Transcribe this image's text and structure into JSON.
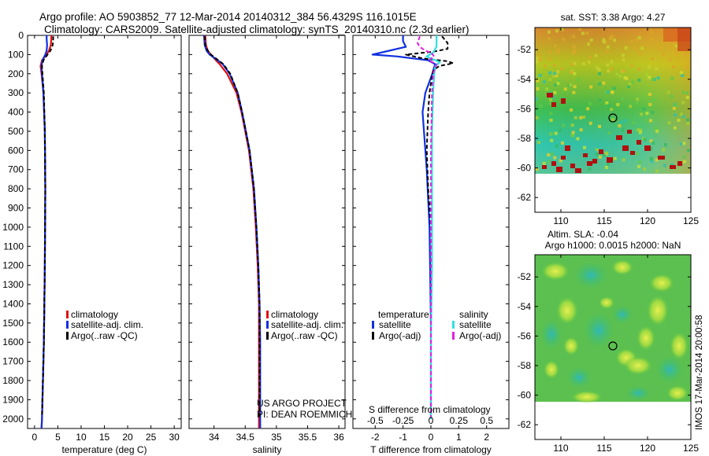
{
  "title": {
    "line1": "Argo profile: AO 5903852_77 12-Mar-2014 20140312_384 56.4329S 116.1015E",
    "line2": "Climatology: CARS2009. Satellite-adjusted climatology: synTS_20140310.nc (2.3d earlier)"
  },
  "colors": {
    "climatology": "#e01010",
    "satellite": "#1030e0",
    "argo": "#000000",
    "s_satellite": "#30e0e0",
    "s_argo": "#e020e0"
  },
  "depth_axis": {
    "ylim": [
      0,
      2050
    ],
    "ticks": [
      0,
      100,
      200,
      300,
      400,
      500,
      600,
      700,
      800,
      900,
      1000,
      1100,
      1200,
      1300,
      1400,
      1500,
      1600,
      1700,
      1800,
      1900,
      2000
    ]
  },
  "chart_data": [
    {
      "id": "temperature",
      "type": "line",
      "xlabel": "temperature (deg C)",
      "xlim": [
        -1.5,
        31.5
      ],
      "xticks": [
        0,
        5,
        10,
        15,
        20,
        25,
        30
      ],
      "legend": {
        "placement": "center-left",
        "entries": [
          "climatology",
          "satellite-adj. clim.",
          "Argo(..raw -QC)"
        ]
      },
      "series": [
        {
          "name": "climatology",
          "color_key": "climatology",
          "style": "solid",
          "depth": [
            0,
            20,
            50,
            80,
            100,
            130,
            160,
            200,
            300,
            500,
            800,
            1200,
            1600,
            2000,
            2050
          ],
          "values": [
            3.6,
            3.6,
            3.5,
            3.1,
            2.6,
            1.6,
            1.3,
            1.5,
            1.9,
            2.2,
            2.3,
            2.2,
            2.0,
            1.6,
            1.5
          ]
        },
        {
          "name": "satellite-adj. clim.",
          "color_key": "satellite",
          "style": "solid",
          "depth": [
            0,
            20,
            50,
            80,
            100,
            130,
            160,
            200,
            300,
            500,
            800,
            1200,
            1600,
            2000,
            2050
          ],
          "values": [
            2.6,
            2.6,
            2.7,
            2.6,
            2.3,
            1.7,
            1.5,
            1.6,
            1.9,
            2.2,
            2.3,
            2.2,
            2.0,
            1.6,
            1.5
          ]
        },
        {
          "name": "Argo(..raw -QC)",
          "color_key": "argo",
          "style": "dashed",
          "depth": [
            5,
            20,
            50,
            80,
            100,
            130,
            160,
            200,
            300,
            500,
            800,
            1200,
            1600,
            1990
          ],
          "values": [
            4.0,
            4.0,
            3.9,
            3.4,
            2.8,
            1.9,
            1.6,
            1.7,
            2.0,
            2.2,
            2.3,
            2.2,
            2.0,
            1.6
          ]
        }
      ]
    },
    {
      "id": "salinity",
      "type": "line",
      "xlabel": "salinity",
      "xlim": [
        33.6,
        36.1
      ],
      "xticks": [
        34,
        34.5,
        35,
        35.5,
        36
      ],
      "xticklabels": [
        "34",
        "34.5",
        "35",
        "35.5",
        "36"
      ],
      "legend": {
        "placement": "center-right",
        "entries": [
          "climatology",
          "satellite-adj. clim.",
          "Argo(..raw -QC)"
        ]
      },
      "series": [
        {
          "name": "climatology",
          "color_key": "climatology",
          "style": "solid",
          "depth": [
            0,
            50,
            80,
            100,
            130,
            150,
            200,
            300,
            400,
            500,
            600,
            800,
            1000,
            1200,
            1400,
            1600,
            1800,
            2000,
            2050
          ],
          "values": [
            33.86,
            33.87,
            33.9,
            33.95,
            34.03,
            34.09,
            34.21,
            34.36,
            34.44,
            34.5,
            34.56,
            34.63,
            34.67,
            34.7,
            34.72,
            34.72,
            34.72,
            34.72,
            34.72
          ]
        },
        {
          "name": "satellite-adj. clim.",
          "color_key": "satellite",
          "style": "solid",
          "depth": [
            0,
            50,
            80,
            100,
            130,
            150,
            200,
            300,
            400,
            500,
            600,
            800,
            1000,
            1200,
            1400,
            1600,
            1800,
            2000,
            2050
          ],
          "values": [
            33.84,
            33.85,
            33.88,
            33.93,
            34.06,
            34.14,
            34.25,
            34.38,
            34.45,
            34.51,
            34.57,
            34.64,
            34.68,
            34.71,
            34.73,
            34.74,
            34.74,
            34.74,
            34.74
          ]
        },
        {
          "name": "Argo(..raw -QC)",
          "color_key": "argo",
          "style": "dashed",
          "depth": [
            5,
            50,
            80,
            100,
            130,
            150,
            200,
            300,
            400,
            500,
            600,
            800,
            1000,
            1200,
            1400,
            1600,
            1800,
            1990
          ],
          "values": [
            33.85,
            33.86,
            33.9,
            33.95,
            34.07,
            34.15,
            34.26,
            34.38,
            34.45,
            34.51,
            34.57,
            34.64,
            34.68,
            34.71,
            34.73,
            34.73,
            34.73,
            34.73
          ]
        }
      ]
    },
    {
      "id": "difference",
      "type": "line",
      "xlabel": "T difference from climatology",
      "xlabel_top": "S difference from climatology",
      "xlim": [
        -2.8,
        2.8
      ],
      "xticks": [
        -2,
        -1,
        0,
        1,
        2
      ],
      "top_ticks": [
        -0.5,
        -0.25,
        0,
        0.25,
        0.5
      ],
      "top_ticklabels": [
        "-0.5",
        "-0.25",
        "0",
        "0.25",
        "0.5"
      ],
      "s_scale": 4,
      "legend": {
        "temperature_heading": "temperature",
        "salinity_heading": "salinity",
        "entries": [
          "satellite",
          "Argo(-adj)",
          "satellite",
          "Argo(-adj)"
        ]
      },
      "series": [
        {
          "name": "T satellite",
          "color_key": "satellite",
          "style": "solid",
          "depth": [
            0,
            30,
            60,
            80,
            100,
            110,
            130,
            150,
            200,
            300,
            400,
            700,
            1000,
            1500,
            2000
          ],
          "values": [
            -1.0,
            -1.0,
            -0.9,
            -1.5,
            -2.1,
            -1.2,
            -0.1,
            0.15,
            0.05,
            -0.2,
            -0.3,
            -0.15,
            -0.05,
            0,
            0
          ]
        },
        {
          "name": "T Argo(-adj)",
          "color_key": "argo",
          "style": "dashed",
          "depth": [
            5,
            40,
            70,
            85,
            100,
            120,
            135,
            145,
            160,
            180,
            200,
            300,
            400,
            600,
            800,
            1000,
            1500,
            1990
          ],
          "values": [
            0.4,
            0.6,
            0.6,
            0.1,
            -0.9,
            -0.3,
            0.6,
            0.8,
            0.3,
            0.1,
            0.05,
            -0.05,
            -0.1,
            -0.15,
            -0.1,
            0,
            0,
            0
          ]
        },
        {
          "name": "S satellite",
          "color_key": "s_satellite",
          "style": "solid",
          "depth": [
            0,
            60,
            90,
            110,
            140,
            160,
            200,
            300,
            500,
            800,
            1200,
            1600,
            2000
          ],
          "values": [
            0.05,
            0.05,
            0.02,
            -0.04,
            0.08,
            0.04,
            0.03,
            0.02,
            0.01,
            0.01,
            0.01,
            0.0,
            0.0
          ]
        },
        {
          "name": "S Argo(-adj)",
          "color_key": "s_argo",
          "style": "dashed",
          "depth": [
            5,
            40,
            60,
            80,
            90,
            110,
            130,
            150,
            200,
            300,
            600,
            1000,
            1500,
            1990
          ],
          "values": [
            -0.1,
            -0.12,
            -0.1,
            -0.05,
            0.0,
            0.03,
            -0.02,
            0.05,
            0.02,
            0.01,
            0.0,
            0.0,
            0.0,
            0.0
          ]
        }
      ]
    }
  ],
  "sst_map": {
    "title": "sat. SST: 3.38 Argo: 4.27",
    "lat_range": [
      -63,
      -50.5
    ],
    "lon_range": [
      107,
      125
    ],
    "lat_ticks": [
      -52,
      -54,
      -56,
      -58,
      -60,
      -62
    ],
    "lon_ticks": [
      110,
      115,
      120,
      125
    ],
    "data_lat_min": -60,
    "float_position": {
      "lon": 116.1,
      "lat": -56.43
    }
  },
  "sla_map": {
    "title1": "Altim. SLA: -0.04",
    "title2": "Argo h1000: 0.0015 h2000: NaN",
    "lat_range": [
      -63,
      -50.5
    ],
    "lon_range": [
      107,
      125
    ],
    "lat_ticks": [
      -52,
      -54,
      -56,
      -58,
      -60,
      -62
    ],
    "lon_ticks": [
      110,
      115,
      120,
      125
    ],
    "data_lat_min": -60,
    "float_position": {
      "lon": 116.1,
      "lat": -56.43
    }
  },
  "credit": {
    "line1": "US ARGO PROJECT",
    "line2": "PI: DEAN ROEMMICH"
  },
  "stamp": "IMOS 17-Mar-2014 20:00:58"
}
